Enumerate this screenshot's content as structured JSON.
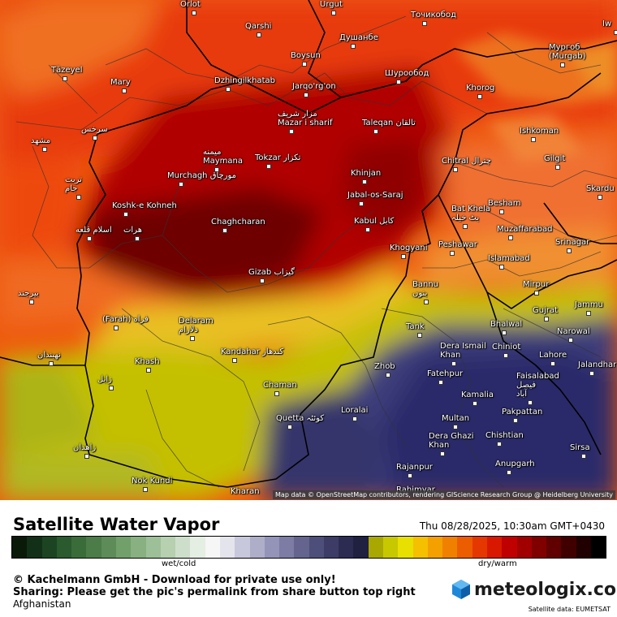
{
  "header": {
    "title": "Satellite Water Vapor",
    "timestamp": "Thu 08/28/2025, 10:30am GMT+0430"
  },
  "legend": {
    "wet_label": "wet/cold",
    "dry_label": "dry/warm",
    "colors": [
      "#0a1a08",
      "#123018",
      "#1c4422",
      "#2a5a2e",
      "#3a6c3a",
      "#4c7c48",
      "#5e8c58",
      "#72a06a",
      "#88b080",
      "#9ec098",
      "#b6d0b0",
      "#cddfca",
      "#e4eee2",
      "#f6f6f6",
      "#e4e4ec",
      "#c8c8dc",
      "#aeaec8",
      "#9494b8",
      "#7c7ca4",
      "#64648e",
      "#4e4e7a",
      "#3c3c66",
      "#2c2c52",
      "#202040",
      "#a8a800",
      "#c8c800",
      "#e8e000",
      "#f4c000",
      "#f4a000",
      "#f08000",
      "#ec5c00",
      "#e43800",
      "#d81800",
      "#c00000",
      "#a00000",
      "#800000",
      "#600000",
      "#400000",
      "#200000",
      "#000000"
    ]
  },
  "footer": {
    "copyright": "© Kachelmann GmbH - Download for private use only!",
    "sharing": "Sharing: Please get the pic's permalink from share button top right",
    "region": "Afghanistan",
    "brand": "meteologix.com",
    "satellite_source": "Satellite data: EUMETSAT"
  },
  "map": {
    "attribution": "Map data © OpenStreetMap contributors, rendering GIScience Research Group @ Heidelberg University",
    "cities": [
      "Qarshi",
      "Boysun",
      "Душанбе",
      "Точикобод",
      "Мургоб\n(Murgab)",
      "Tāzeyel",
      "Mary",
      "Dzhingilkhatab",
      "Jarqo'rg'on",
      "Шурообод",
      "Khorog",
      "سرخس",
      "مزار شريف\nMazar i sharif",
      "Taleqan تالقان",
      "Ishkoman",
      "مشهد",
      "میمنه\nMaymana",
      "Tokzar تكزار",
      "Khinjan",
      "Chitral چترال",
      "Gilgit",
      "تربت\nجام",
      "Murchagh مورچاق",
      "Jabal-os-Saraj",
      "Skardu",
      "Koshk-e Kohneh",
      "هرات",
      "Chaghcharan",
      "Kabul كابل",
      "Bat Khela\nبٹ خیلہ",
      "Besham",
      "اسلام قلعه",
      "Muzaffarabad",
      "Srinagar",
      "Khogyani",
      "Peshawar",
      "Islamabad",
      "Gizab گيزاب",
      "Bannu\nبنوں",
      "Mirpur",
      "بیرجند",
      "(Farah) فراه",
      "Delaram\nدلارام",
      "Gujrat",
      "Jammu",
      "Tank",
      "Bhalwal",
      "Narowal",
      "نهبندان",
      "Dera Ismail\nKhan",
      "Chiniot",
      "Lahore",
      "Kandahar كندهار",
      "Khash",
      "Zhob",
      "Jalandhar",
      "زابل",
      "Fatehpur",
      "Faisalabad\nفیصل\nآباد",
      "Chaman",
      "Kamalia",
      "Loralai",
      "Quetta کوئٹہ",
      "Multan",
      "Pakpattan",
      "زاهدان",
      "Dera Ghazi\nKhan",
      "Chishtian",
      "Sirsa",
      "Rajanpur",
      "Anupgarh",
      "Nok Kundi",
      "Kharan",
      "Rahimyar",
      "Orlot",
      "Urgut",
      "Iw"
    ]
  }
}
